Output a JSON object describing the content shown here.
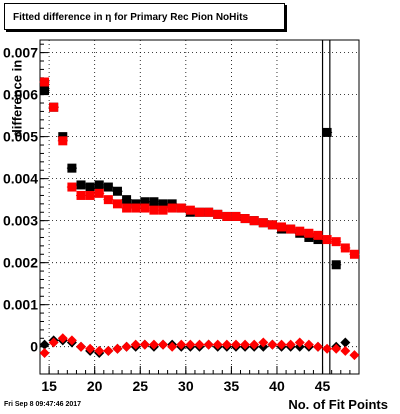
{
  "title": "Fitted difference in  η for Primary Rec Pion NoHits",
  "timestamp": "Fri Sep  8 09:47:46 2017",
  "colors": {
    "series_black": "#000000",
    "series_red": "#ff0000",
    "grid": "#000000"
  },
  "chart_data": {
    "type": "scatter",
    "title": "Fitted difference in  η for Primary Rec Pion NoHits",
    "xlabel": "No. of Fit Points",
    "ylabel": "difference in",
    "xlim": [
      14,
      49
    ],
    "ylim": [
      -0.00065,
      0.0073
    ],
    "grid": true,
    "x_ticks": [
      "15",
      "20",
      "25",
      "30",
      "35",
      "40",
      "45"
    ],
    "y_ticks": [
      "0",
      "0.001",
      "0.002",
      "0.003",
      "0.004",
      "0.005",
      "0.006",
      "0.007"
    ],
    "vertical_lines_x": [
      45.0,
      45.8
    ],
    "series": [
      {
        "color": "black",
        "marker": "square",
        "x": [
          14.5,
          15.5,
          16.5,
          17.5,
          18.5,
          19.5,
          20.5,
          21.5,
          22.5,
          23.5,
          24.5,
          25.5,
          26.5,
          27.5,
          28.5,
          29.5,
          30.5,
          31.5,
          32.5,
          33.5,
          34.5,
          35.5,
          36.5,
          37.5,
          38.5,
          39.5,
          40.5,
          41.5,
          42.5,
          43.5,
          44.5,
          45.5,
          46.5,
          47.5,
          48.5
        ],
        "y": [
          0.0061,
          0.0057,
          0.005,
          0.00425,
          0.00385,
          0.0038,
          0.00385,
          0.0038,
          0.0037,
          0.0035,
          0.0034,
          0.00345,
          0.00345,
          0.0034,
          0.0034,
          0.0033,
          0.0032,
          0.0032,
          0.0032,
          0.00315,
          0.0031,
          0.0031,
          0.00305,
          0.003,
          0.00295,
          0.0029,
          0.0028,
          0.0028,
          0.0027,
          0.0026,
          0.00255,
          0.0051,
          0.00195,
          null,
          null
        ]
      },
      {
        "color": "red",
        "marker": "square",
        "x": [
          14.5,
          15.5,
          16.5,
          17.5,
          18.5,
          19.5,
          20.5,
          21.5,
          22.5,
          23.5,
          24.5,
          25.5,
          26.5,
          27.5,
          28.5,
          29.5,
          30.5,
          31.5,
          32.5,
          33.5,
          34.5,
          35.5,
          36.5,
          37.5,
          38.5,
          39.5,
          40.5,
          41.5,
          42.5,
          43.5,
          44.5,
          45.5,
          46.5,
          47.5,
          48.5
        ],
        "y": [
          0.0063,
          0.0057,
          0.0049,
          0.0038,
          0.0036,
          0.0036,
          0.00365,
          0.0035,
          0.0034,
          0.0033,
          0.0033,
          0.0033,
          0.00325,
          0.00325,
          0.0033,
          0.0033,
          0.00325,
          0.0032,
          0.0032,
          0.00315,
          0.0031,
          0.0031,
          0.00305,
          0.003,
          0.00295,
          0.0029,
          0.00285,
          0.0028,
          0.00275,
          0.0027,
          0.00265,
          0.00255,
          0.0025,
          0.00235,
          0.0022
        ]
      },
      {
        "color": "black",
        "marker": "diamond",
        "x": [
          14.5,
          15.5,
          16.5,
          17.5,
          18.5,
          19.5,
          20.5,
          21.5,
          22.5,
          23.5,
          24.5,
          25.5,
          26.5,
          27.5,
          28.5,
          29.5,
          30.5,
          31.5,
          32.5,
          33.5,
          34.5,
          35.5,
          36.5,
          37.5,
          38.5,
          39.5,
          40.5,
          41.5,
          42.5,
          43.5,
          44.5,
          45.5,
          46.5,
          47.5,
          48.5
        ],
        "y": [
          5e-05,
          0.00015,
          0.00015,
          0.0001,
          0.0,
          -0.0001,
          -0.00015,
          -0.0001,
          -5e-05,
          0.0,
          0.0,
          5e-05,
          0.0,
          5e-05,
          5e-05,
          0.0,
          0.0,
          0.0,
          5e-05,
          0.0,
          0.0,
          0.0,
          0.0,
          0.0,
          0.0,
          5e-05,
          0.0,
          0.0,
          0.0,
          0.0,
          0.0,
          null,
          0.0,
          0.0001,
          null
        ]
      },
      {
        "color": "red",
        "marker": "diamond",
        "x": [
          14.5,
          15.5,
          16.5,
          17.5,
          18.5,
          19.5,
          20.5,
          21.5,
          22.5,
          23.5,
          24.5,
          25.5,
          26.5,
          27.5,
          28.5,
          29.5,
          30.5,
          31.5,
          32.5,
          33.5,
          34.5,
          35.5,
          36.5,
          37.5,
          38.5,
          39.5,
          40.5,
          41.5,
          42.5,
          43.5,
          44.5,
          45.5,
          46.5,
          47.5,
          48.5
        ],
        "y": [
          -0.00015,
          0.0001,
          0.0002,
          0.00015,
          0.0,
          -5e-05,
          -0.0001,
          -0.0001,
          -5e-05,
          0.0,
          5e-05,
          5e-05,
          5e-05,
          5e-05,
          0.0,
          5e-05,
          5e-05,
          5e-05,
          5e-05,
          5e-05,
          5e-05,
          5e-05,
          5e-05,
          5e-05,
          0.0001,
          5e-05,
          5e-05,
          5e-05,
          0.0001,
          5e-05,
          0.0,
          -5e-05,
          -5e-05,
          -0.0001,
          -0.0002
        ]
      }
    ]
  }
}
